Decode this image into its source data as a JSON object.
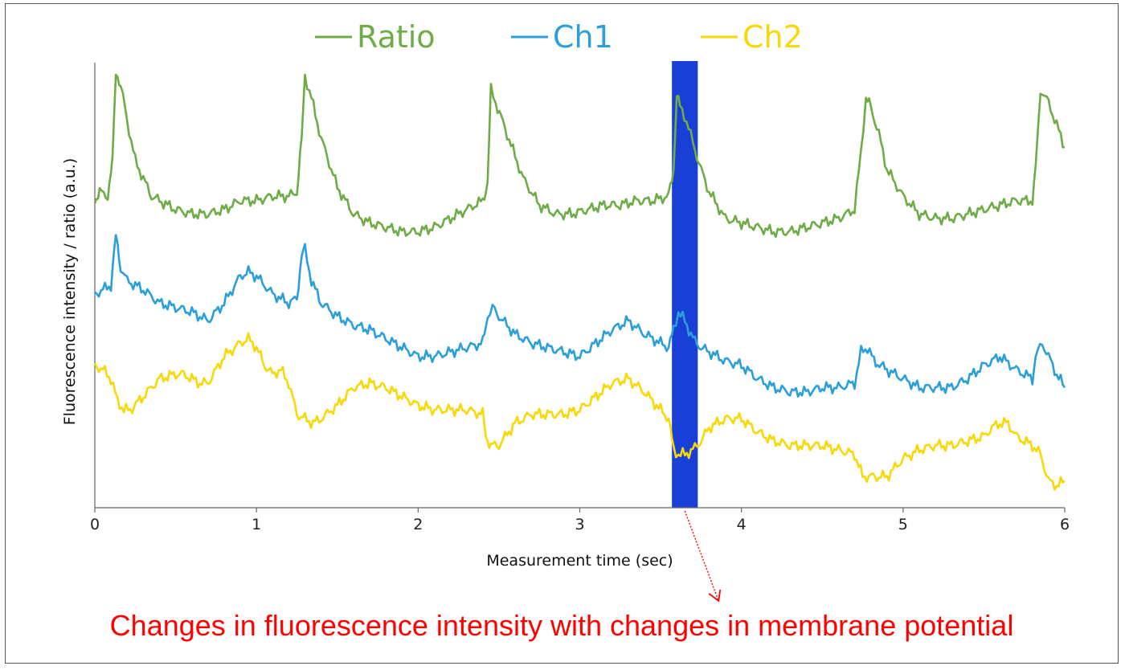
{
  "chart_data": {
    "type": "line",
    "xlabel": "Measurement time (sec)",
    "ylabel": "Fluorescence intensity / ratio (a.u.)",
    "xlim": [
      0,
      6
    ],
    "ylim": [
      0,
      1
    ],
    "x_ticks": [
      "0",
      "1",
      "2",
      "3",
      "4",
      "5",
      "6"
    ],
    "y_ticks_shown": false,
    "grid": false,
    "legend_position": "top-center",
    "highlight_band": {
      "x_start": 3.57,
      "x_end": 3.73,
      "color": "#1a3fd6"
    },
    "annotation": {
      "text": "Changes in fluorescence intensity with changes in membrane potential",
      "color": "#ff0000",
      "points_to_x": 3.65
    },
    "series": [
      {
        "name": "Ratio",
        "color": "#6fac46",
        "x": [
          0.0,
          0.03,
          0.08,
          0.11,
          0.13,
          0.16,
          0.2,
          0.25,
          0.3,
          0.35,
          0.4,
          0.5,
          0.6,
          0.7,
          0.8,
          0.9,
          1.0,
          1.1,
          1.2,
          1.25,
          1.28,
          1.3,
          1.34,
          1.4,
          1.5,
          1.6,
          1.7,
          1.8,
          1.9,
          2.0,
          2.1,
          2.2,
          2.3,
          2.4,
          2.43,
          2.45,
          2.48,
          2.55,
          2.65,
          2.75,
          2.85,
          2.95,
          3.05,
          3.15,
          3.25,
          3.35,
          3.45,
          3.55,
          3.58,
          3.6,
          3.62,
          3.66,
          3.7,
          3.75,
          3.8,
          3.9,
          4.0,
          4.1,
          4.2,
          4.3,
          4.4,
          4.5,
          4.6,
          4.7,
          4.74,
          4.77,
          4.8,
          4.85,
          4.9,
          5.0,
          5.1,
          5.2,
          5.3,
          5.4,
          5.5,
          5.6,
          5.7,
          5.8,
          5.82,
          5.85,
          5.9,
          5.95,
          6.0
        ],
        "values": [
          0.69,
          0.71,
          0.7,
          0.78,
          0.98,
          0.95,
          0.87,
          0.78,
          0.74,
          0.7,
          0.69,
          0.67,
          0.66,
          0.66,
          0.67,
          0.69,
          0.69,
          0.7,
          0.7,
          0.71,
          0.83,
          0.97,
          0.92,
          0.83,
          0.72,
          0.66,
          0.64,
          0.63,
          0.62,
          0.62,
          0.63,
          0.65,
          0.67,
          0.69,
          0.73,
          0.94,
          0.91,
          0.84,
          0.74,
          0.68,
          0.66,
          0.66,
          0.67,
          0.68,
          0.68,
          0.69,
          0.69,
          0.7,
          0.76,
          0.93,
          0.9,
          0.87,
          0.82,
          0.76,
          0.71,
          0.65,
          0.64,
          0.63,
          0.62,
          0.62,
          0.63,
          0.64,
          0.65,
          0.67,
          0.8,
          0.92,
          0.9,
          0.84,
          0.76,
          0.7,
          0.66,
          0.65,
          0.65,
          0.66,
          0.67,
          0.68,
          0.69,
          0.69,
          0.76,
          0.94,
          0.91,
          0.86,
          0.81
        ]
      },
      {
        "name": "Ch1",
        "color": "#2b9fd9",
        "x": [
          0.0,
          0.05,
          0.1,
          0.13,
          0.16,
          0.2,
          0.3,
          0.4,
          0.5,
          0.6,
          0.7,
          0.8,
          0.9,
          0.95,
          1.0,
          1.1,
          1.2,
          1.25,
          1.28,
          1.3,
          1.34,
          1.4,
          1.5,
          1.6,
          1.7,
          1.8,
          1.9,
          2.0,
          2.1,
          2.2,
          2.3,
          2.4,
          2.43,
          2.46,
          2.5,
          2.6,
          2.7,
          2.8,
          2.9,
          3.0,
          3.1,
          3.2,
          3.3,
          3.4,
          3.5,
          3.55,
          3.58,
          3.61,
          3.65,
          3.7,
          3.75,
          3.8,
          3.9,
          4.0,
          4.1,
          4.2,
          4.3,
          4.4,
          4.5,
          4.6,
          4.7,
          4.74,
          4.78,
          4.82,
          4.9,
          5.0,
          5.1,
          5.2,
          5.3,
          5.4,
          5.5,
          5.6,
          5.7,
          5.8,
          5.82,
          5.86,
          5.9,
          5.95,
          6.0
        ],
        "values": [
          0.48,
          0.49,
          0.5,
          0.61,
          0.54,
          0.51,
          0.49,
          0.46,
          0.45,
          0.44,
          0.42,
          0.46,
          0.52,
          0.53,
          0.52,
          0.48,
          0.46,
          0.47,
          0.57,
          0.58,
          0.51,
          0.46,
          0.43,
          0.41,
          0.4,
          0.38,
          0.36,
          0.34,
          0.34,
          0.35,
          0.36,
          0.37,
          0.43,
          0.45,
          0.43,
          0.39,
          0.37,
          0.36,
          0.35,
          0.34,
          0.37,
          0.4,
          0.42,
          0.39,
          0.37,
          0.36,
          0.4,
          0.44,
          0.42,
          0.38,
          0.36,
          0.35,
          0.33,
          0.32,
          0.29,
          0.27,
          0.26,
          0.26,
          0.27,
          0.27,
          0.28,
          0.35,
          0.36,
          0.33,
          0.31,
          0.29,
          0.27,
          0.27,
          0.27,
          0.29,
          0.32,
          0.34,
          0.31,
          0.29,
          0.34,
          0.37,
          0.34,
          0.3,
          0.27
        ]
      },
      {
        "name": "Ch2",
        "color": "#f7d808",
        "x": [
          0.0,
          0.05,
          0.1,
          0.14,
          0.18,
          0.22,
          0.3,
          0.4,
          0.5,
          0.55,
          0.6,
          0.65,
          0.7,
          0.8,
          0.9,
          0.95,
          1.0,
          1.05,
          1.1,
          1.15,
          1.2,
          1.25,
          1.3,
          1.35,
          1.4,
          1.5,
          1.6,
          1.7,
          1.8,
          1.9,
          2.0,
          2.1,
          2.2,
          2.3,
          2.4,
          2.42,
          2.45,
          2.5,
          2.6,
          2.7,
          2.8,
          2.9,
          3.0,
          3.1,
          3.2,
          3.3,
          3.4,
          3.5,
          3.55,
          3.58,
          3.61,
          3.65,
          3.7,
          3.75,
          3.8,
          3.9,
          4.0,
          4.1,
          4.2,
          4.3,
          4.4,
          4.5,
          4.6,
          4.7,
          4.75,
          4.8,
          4.9,
          5.0,
          5.1,
          5.2,
          5.3,
          5.4,
          5.5,
          5.55,
          5.6,
          5.65,
          5.7,
          5.8,
          5.85,
          5.9,
          5.95,
          6.0
        ],
        "values": [
          0.32,
          0.31,
          0.29,
          0.24,
          0.22,
          0.22,
          0.25,
          0.29,
          0.3,
          0.3,
          0.29,
          0.28,
          0.28,
          0.34,
          0.37,
          0.38,
          0.36,
          0.32,
          0.3,
          0.31,
          0.28,
          0.21,
          0.2,
          0.19,
          0.2,
          0.23,
          0.27,
          0.28,
          0.27,
          0.25,
          0.23,
          0.22,
          0.22,
          0.22,
          0.21,
          0.16,
          0.14,
          0.14,
          0.19,
          0.21,
          0.21,
          0.21,
          0.22,
          0.25,
          0.28,
          0.29,
          0.26,
          0.22,
          0.2,
          0.13,
          0.12,
          0.12,
          0.13,
          0.15,
          0.18,
          0.2,
          0.2,
          0.17,
          0.15,
          0.14,
          0.14,
          0.14,
          0.13,
          0.12,
          0.07,
          0.07,
          0.07,
          0.11,
          0.13,
          0.14,
          0.14,
          0.15,
          0.16,
          0.18,
          0.19,
          0.19,
          0.16,
          0.14,
          0.12,
          0.06,
          0.05,
          0.06
        ]
      }
    ]
  }
}
